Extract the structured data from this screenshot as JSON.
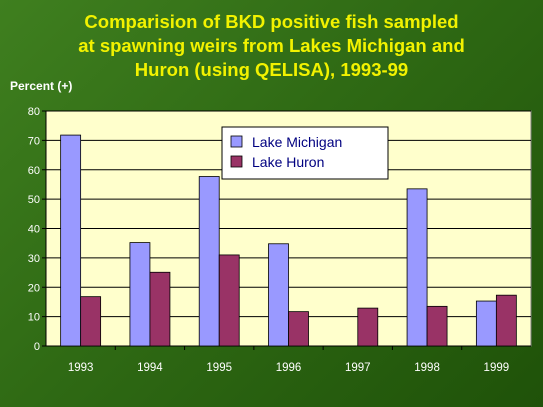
{
  "title_lines": [
    "Comparision of BKD positive fish sampled",
    "at spawning weirs from  Lakes Michigan and",
    "Huron (using QELISA), 1993-99"
  ],
  "colors": {
    "lake_michigan": "#9999ff",
    "lake_huron": "#993366",
    "plot_bg": "#ffffcc",
    "title": "#f2f200"
  },
  "chart_data": {
    "type": "bar",
    "title": "Comparision of BKD positive fish sampled at spawning weirs from  Lakes Michigan and Huron (using QELISA), 1993-99",
    "ylabel": "Percent (+)",
    "xlabel": "",
    "categories": [
      "1993",
      "1994",
      "1995",
      "1996",
      "1997",
      "1998",
      "1999"
    ],
    "series": [
      {
        "name": "Lake Michigan",
        "values": [
          71.8,
          35.2,
          57.7,
          34.8,
          0,
          53.5,
          15.3
        ]
      },
      {
        "name": "Lake Huron",
        "values": [
          16.8,
          25.1,
          31.0,
          11.7,
          12.9,
          13.5,
          17.3
        ]
      }
    ],
    "ylim": [
      0,
      80
    ],
    "yticks": [
      0,
      10,
      20,
      30,
      40,
      50,
      60,
      70,
      80
    ],
    "grid": true,
    "legend_position": "top-center"
  }
}
